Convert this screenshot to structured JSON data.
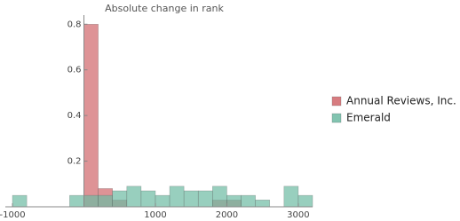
{
  "chart_data": {
    "type": "histogram",
    "title": "Absolute change in rank",
    "bins": [
      -1000,
      -800,
      -600,
      -400,
      -200,
      0,
      200,
      400,
      600,
      800,
      1000,
      1200,
      1400,
      1600,
      1800,
      2000,
      2200,
      2400,
      2600,
      2800,
      3000,
      3200
    ],
    "series": [
      {
        "name": "Annual Reviews, Inc.",
        "color": "#d0656a",
        "values": [
          0,
          0,
          0,
          0,
          0,
          0.8,
          0.08,
          0.03,
          0,
          0,
          0,
          0,
          0,
          0,
          0.03,
          0.03,
          0,
          0,
          0,
          0,
          0
        ]
      },
      {
        "name": "Emerald",
        "color": "#6cbaa2",
        "values": [
          0.05,
          0,
          0,
          0,
          0.05,
          0.05,
          0.05,
          0.07,
          0.09,
          0.07,
          0.05,
          0.09,
          0.07,
          0.07,
          0.09,
          0.05,
          0.05,
          0.03,
          0,
          0.09,
          0.05
        ]
      }
    ],
    "xlim": [
      -1100,
      3200
    ],
    "xticks": [
      -1000,
      1000,
      2000,
      3000
    ],
    "ylim": [
      0,
      0.84
    ],
    "yticks": [
      0.2,
      0.4,
      0.6,
      0.8
    ],
    "legend": "right"
  }
}
